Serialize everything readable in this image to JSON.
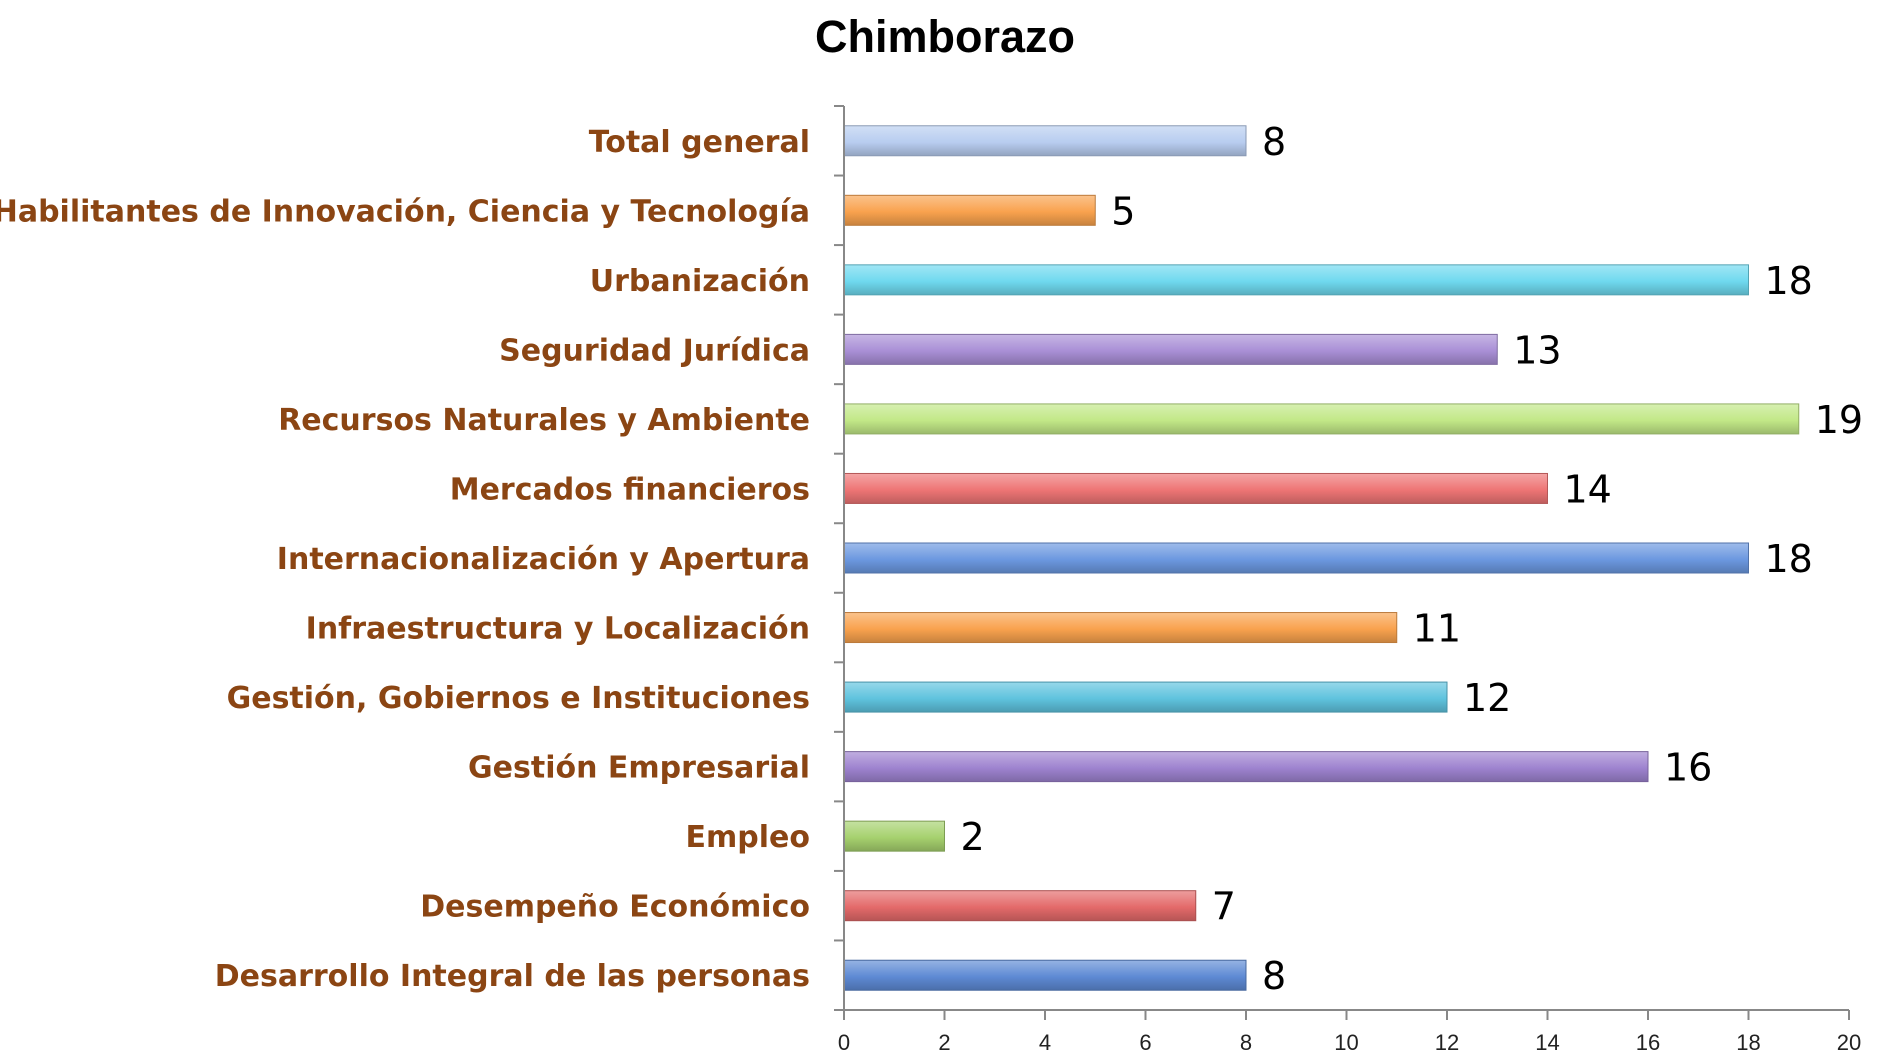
{
  "chart_data": {
    "type": "bar",
    "orientation": "horizontal",
    "title": "Chimborazo",
    "xlabel": "",
    "ylabel": "",
    "xlim": [
      0,
      20
    ],
    "ticks": [
      0,
      2,
      4,
      6,
      8,
      10,
      12,
      14,
      16,
      18,
      20
    ],
    "grid": false,
    "legend": "none",
    "categories": [
      "Total general",
      "Habilitantes de Innovación, Ciencia y Tecnología",
      "Urbanización",
      "Seguridad Jurídica",
      "Recursos Naturales y Ambiente",
      "Mercados financieros",
      "Internacionalización y Apertura",
      "Infraestructura y Localización",
      "Gestión, Gobiernos e Instituciones",
      "Gestión Empresarial",
      "Empleo",
      "Desempeño Económico",
      "Desarrollo Integral de las personas"
    ],
    "values": [
      8,
      5,
      18,
      13,
      19,
      14,
      18,
      11,
      12,
      16,
      2,
      7,
      8
    ],
    "colors": [
      "#b8cdf0",
      "#f9a24e",
      "#6fd9ef",
      "#a98fd6",
      "#c2e887",
      "#ee7575",
      "#6c98e0",
      "#f9a24e",
      "#5fc3de",
      "#9e83cf",
      "#a6d16e",
      "#e46a6a",
      "#5e8ad4"
    ]
  }
}
